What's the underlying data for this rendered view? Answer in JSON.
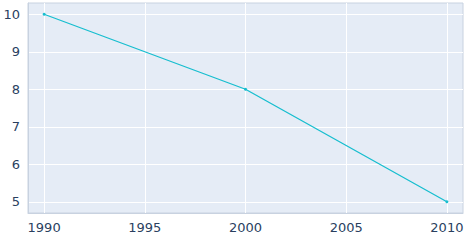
{
  "chart_data": {
    "type": "line",
    "x": [
      1990,
      2000,
      2010
    ],
    "values": [
      10,
      8,
      5
    ],
    "color": "#17becf",
    "marker": "circle",
    "xlim": [
      1989.2,
      2010.8
    ],
    "xticks": [
      1990,
      1995,
      2000,
      2005,
      2010
    ],
    "ylim": [
      4.7,
      10.3
    ],
    "yticks": [
      5,
      6,
      7,
      8,
      9,
      10
    ],
    "grid": true
  }
}
